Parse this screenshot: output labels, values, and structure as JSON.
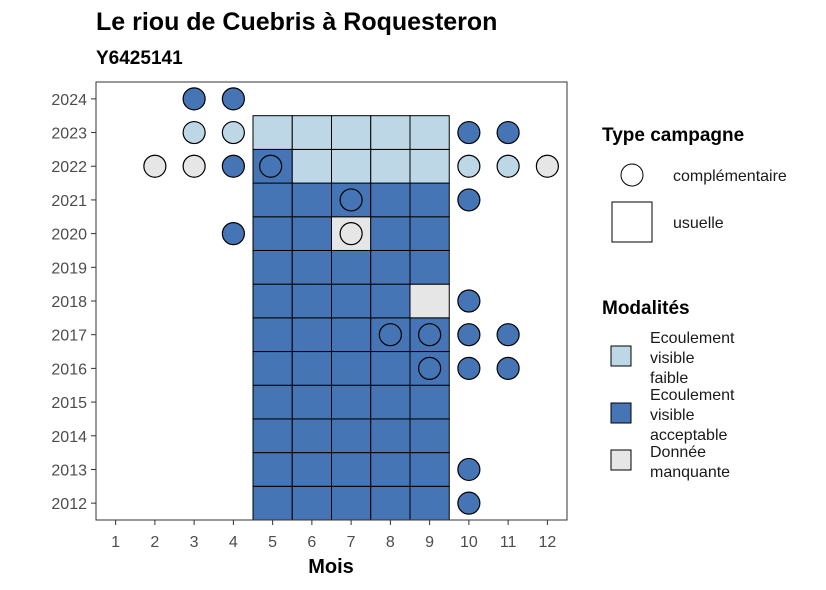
{
  "chart_data": {
    "type": "heatmap",
    "title": "Le riou de Cuebris à Roquesteron",
    "subtitle": "Y6425141",
    "xlabel": "Mois",
    "ylabel": "",
    "x_ticks": [
      "1",
      "2",
      "3",
      "4",
      "5",
      "6",
      "7",
      "8",
      "9",
      "10",
      "11",
      "12"
    ],
    "y_ticks": [
      "2012",
      "2013",
      "2014",
      "2015",
      "2016",
      "2017",
      "2018",
      "2019",
      "2020",
      "2021",
      "2022",
      "2023",
      "2024"
    ],
    "xlim": [
      0.5,
      12.5
    ],
    "ylim": [
      2011.5,
      2024.5
    ],
    "grid": false,
    "colors": {
      "Ecoulement visible faible": "#bdd7e7",
      "Ecoulement visible acceptable": "#4575b4",
      "Donnée manquante": "#e6e6e6"
    },
    "usuelle": [
      {
        "year": 2012,
        "month": 5,
        "modalite": "Ecoulement visible acceptable"
      },
      {
        "year": 2012,
        "month": 6,
        "modalite": "Ecoulement visible acceptable"
      },
      {
        "year": 2012,
        "month": 7,
        "modalite": "Ecoulement visible acceptable"
      },
      {
        "year": 2012,
        "month": 8,
        "modalite": "Ecoulement visible acceptable"
      },
      {
        "year": 2012,
        "month": 9,
        "modalite": "Ecoulement visible acceptable"
      },
      {
        "year": 2013,
        "month": 5,
        "modalite": "Ecoulement visible acceptable"
      },
      {
        "year": 2013,
        "month": 6,
        "modalite": "Ecoulement visible acceptable"
      },
      {
        "year": 2013,
        "month": 7,
        "modalite": "Ecoulement visible acceptable"
      },
      {
        "year": 2013,
        "month": 8,
        "modalite": "Ecoulement visible acceptable"
      },
      {
        "year": 2013,
        "month": 9,
        "modalite": "Ecoulement visible acceptable"
      },
      {
        "year": 2014,
        "month": 5,
        "modalite": "Ecoulement visible acceptable"
      },
      {
        "year": 2014,
        "month": 6,
        "modalite": "Ecoulement visible acceptable"
      },
      {
        "year": 2014,
        "month": 7,
        "modalite": "Ecoulement visible acceptable"
      },
      {
        "year": 2014,
        "month": 8,
        "modalite": "Ecoulement visible acceptable"
      },
      {
        "year": 2014,
        "month": 9,
        "modalite": "Ecoulement visible acceptable"
      },
      {
        "year": 2015,
        "month": 5,
        "modalite": "Ecoulement visible acceptable"
      },
      {
        "year": 2015,
        "month": 6,
        "modalite": "Ecoulement visible acceptable"
      },
      {
        "year": 2015,
        "month": 7,
        "modalite": "Ecoulement visible acceptable"
      },
      {
        "year": 2015,
        "month": 8,
        "modalite": "Ecoulement visible acceptable"
      },
      {
        "year": 2015,
        "month": 9,
        "modalite": "Ecoulement visible acceptable"
      },
      {
        "year": 2016,
        "month": 5,
        "modalite": "Ecoulement visible acceptable"
      },
      {
        "year": 2016,
        "month": 6,
        "modalite": "Ecoulement visible acceptable"
      },
      {
        "year": 2016,
        "month": 7,
        "modalite": "Ecoulement visible acceptable"
      },
      {
        "year": 2016,
        "month": 8,
        "modalite": "Ecoulement visible acceptable"
      },
      {
        "year": 2016,
        "month": 9,
        "modalite": "Ecoulement visible acceptable"
      },
      {
        "year": 2017,
        "month": 5,
        "modalite": "Ecoulement visible acceptable"
      },
      {
        "year": 2017,
        "month": 6,
        "modalite": "Ecoulement visible acceptable"
      },
      {
        "year": 2017,
        "month": 7,
        "modalite": "Ecoulement visible acceptable"
      },
      {
        "year": 2017,
        "month": 8,
        "modalite": "Ecoulement visible acceptable"
      },
      {
        "year": 2017,
        "month": 9,
        "modalite": "Ecoulement visible acceptable"
      },
      {
        "year": 2018,
        "month": 5,
        "modalite": "Ecoulement visible acceptable"
      },
      {
        "year": 2018,
        "month": 6,
        "modalite": "Ecoulement visible acceptable"
      },
      {
        "year": 2018,
        "month": 7,
        "modalite": "Ecoulement visible acceptable"
      },
      {
        "year": 2018,
        "month": 8,
        "modalite": "Ecoulement visible acceptable"
      },
      {
        "year": 2018,
        "month": 9,
        "modalite": "Donnée manquante"
      },
      {
        "year": 2019,
        "month": 5,
        "modalite": "Ecoulement visible acceptable"
      },
      {
        "year": 2019,
        "month": 6,
        "modalite": "Ecoulement visible acceptable"
      },
      {
        "year": 2019,
        "month": 7,
        "modalite": "Ecoulement visible acceptable"
      },
      {
        "year": 2019,
        "month": 8,
        "modalite": "Ecoulement visible acceptable"
      },
      {
        "year": 2019,
        "month": 9,
        "modalite": "Ecoulement visible acceptable"
      },
      {
        "year": 2020,
        "month": 5,
        "modalite": "Ecoulement visible acceptable"
      },
      {
        "year": 2020,
        "month": 6,
        "modalite": "Ecoulement visible acceptable"
      },
      {
        "year": 2020,
        "month": 7,
        "modalite": "Donnée manquante"
      },
      {
        "year": 2020,
        "month": 8,
        "modalite": "Ecoulement visible acceptable"
      },
      {
        "year": 2020,
        "month": 9,
        "modalite": "Ecoulement visible acceptable"
      },
      {
        "year": 2021,
        "month": 5,
        "modalite": "Ecoulement visible acceptable"
      },
      {
        "year": 2021,
        "month": 6,
        "modalite": "Ecoulement visible acceptable"
      },
      {
        "year": 2021,
        "month": 7,
        "modalite": "Ecoulement visible acceptable"
      },
      {
        "year": 2021,
        "month": 8,
        "modalite": "Ecoulement visible acceptable"
      },
      {
        "year": 2021,
        "month": 9,
        "modalite": "Ecoulement visible acceptable"
      },
      {
        "year": 2022,
        "month": 5,
        "modalite": "Ecoulement visible acceptable"
      },
      {
        "year": 2022,
        "month": 6,
        "modalite": "Ecoulement visible faible"
      },
      {
        "year": 2022,
        "month": 7,
        "modalite": "Ecoulement visible faible"
      },
      {
        "year": 2022,
        "month": 8,
        "modalite": "Ecoulement visible faible"
      },
      {
        "year": 2022,
        "month": 9,
        "modalite": "Ecoulement visible faible"
      },
      {
        "year": 2023,
        "month": 5,
        "modalite": "Ecoulement visible faible"
      },
      {
        "year": 2023,
        "month": 6,
        "modalite": "Ecoulement visible faible"
      },
      {
        "year": 2023,
        "month": 7,
        "modalite": "Ecoulement visible faible"
      },
      {
        "year": 2023,
        "month": 8,
        "modalite": "Ecoulement visible faible"
      },
      {
        "year": 2023,
        "month": 9,
        "modalite": "Ecoulement visible faible"
      }
    ],
    "complementaire": [
      {
        "year": 2024,
        "month": 3,
        "modalite": "Ecoulement visible acceptable"
      },
      {
        "year": 2024,
        "month": 4,
        "modalite": "Ecoulement visible acceptable"
      },
      {
        "year": 2023,
        "month": 3,
        "modalite": "Ecoulement visible faible"
      },
      {
        "year": 2023,
        "month": 4,
        "modalite": "Ecoulement visible faible"
      },
      {
        "year": 2023,
        "month": 10,
        "modalite": "Ecoulement visible acceptable"
      },
      {
        "year": 2023,
        "month": 11,
        "modalite": "Ecoulement visible acceptable"
      },
      {
        "year": 2022,
        "month": 2,
        "modalite": "Donnée manquante"
      },
      {
        "year": 2022,
        "month": 3,
        "modalite": "Donnée manquante"
      },
      {
        "year": 2022,
        "month": 4,
        "modalite": "Ecoulement visible acceptable"
      },
      {
        "year": 2022,
        "month": 4.95,
        "modalite": "Ecoulement visible acceptable"
      },
      {
        "year": 2022,
        "month": 10,
        "modalite": "Ecoulement visible faible"
      },
      {
        "year": 2022,
        "month": 11,
        "modalite": "Ecoulement visible faible"
      },
      {
        "year": 2022,
        "month": 12,
        "modalite": "Donnée manquante"
      },
      {
        "year": 2021,
        "month": 7,
        "modalite": "Ecoulement visible acceptable"
      },
      {
        "year": 2021,
        "month": 10,
        "modalite": "Ecoulement visible acceptable"
      },
      {
        "year": 2020,
        "month": 4,
        "modalite": "Ecoulement visible acceptable"
      },
      {
        "year": 2020,
        "month": 7,
        "modalite": "Donnée manquante"
      },
      {
        "year": 2018,
        "month": 10,
        "modalite": "Ecoulement visible acceptable"
      },
      {
        "year": 2017,
        "month": 8,
        "modalite": "Ecoulement visible acceptable"
      },
      {
        "year": 2017,
        "month": 9,
        "modalite": "Ecoulement visible acceptable"
      },
      {
        "year": 2017,
        "month": 10,
        "modalite": "Ecoulement visible acceptable"
      },
      {
        "year": 2017,
        "month": 11,
        "modalite": "Ecoulement visible acceptable"
      },
      {
        "year": 2016,
        "month": 9,
        "modalite": "Ecoulement visible acceptable"
      },
      {
        "year": 2016,
        "month": 10,
        "modalite": "Ecoulement visible acceptable"
      },
      {
        "year": 2016,
        "month": 11,
        "modalite": "Ecoulement visible acceptable"
      },
      {
        "year": 2013,
        "month": 10,
        "modalite": "Ecoulement visible acceptable"
      },
      {
        "year": 2012,
        "month": 10,
        "modalite": "Ecoulement visible acceptable"
      }
    ],
    "legend": {
      "placement": "right",
      "type_title": "Type campagne",
      "type_items": [
        "complémentaire",
        "usuelle"
      ],
      "modalites_title": "Modalités",
      "modalites_items": [
        {
          "lines": [
            "Ecoulement",
            "visible",
            "faible"
          ],
          "key": "Ecoulement visible faible"
        },
        {
          "lines": [
            "Ecoulement",
            "visible",
            "acceptable"
          ],
          "key": "Ecoulement visible acceptable"
        },
        {
          "lines": [
            "Donnée",
            "manquante"
          ],
          "key": "Donnée manquante"
        }
      ]
    }
  }
}
